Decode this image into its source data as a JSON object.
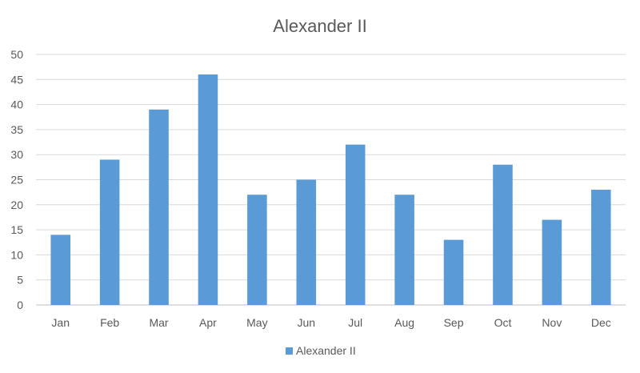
{
  "chart_data": {
    "type": "bar",
    "title": "Alexander II",
    "xlabel": "",
    "ylabel": "",
    "categories": [
      "Jan",
      "Feb",
      "Mar",
      "Apr",
      "May",
      "Jun",
      "Jul",
      "Aug",
      "Sep",
      "Oct",
      "Nov",
      "Dec"
    ],
    "series": [
      {
        "name": "Alexander II",
        "values": [
          14,
          29,
          39,
          46,
          22,
          25,
          32,
          22,
          13,
          28,
          17,
          23
        ],
        "color": "#5b9bd5"
      }
    ],
    "ylim": [
      0,
      50
    ],
    "yticks": [
      "0",
      "5",
      "10",
      "15",
      "20",
      "25",
      "30",
      "35",
      "40",
      "45",
      "50"
    ],
    "grid": true,
    "legend_position": "bottom"
  }
}
